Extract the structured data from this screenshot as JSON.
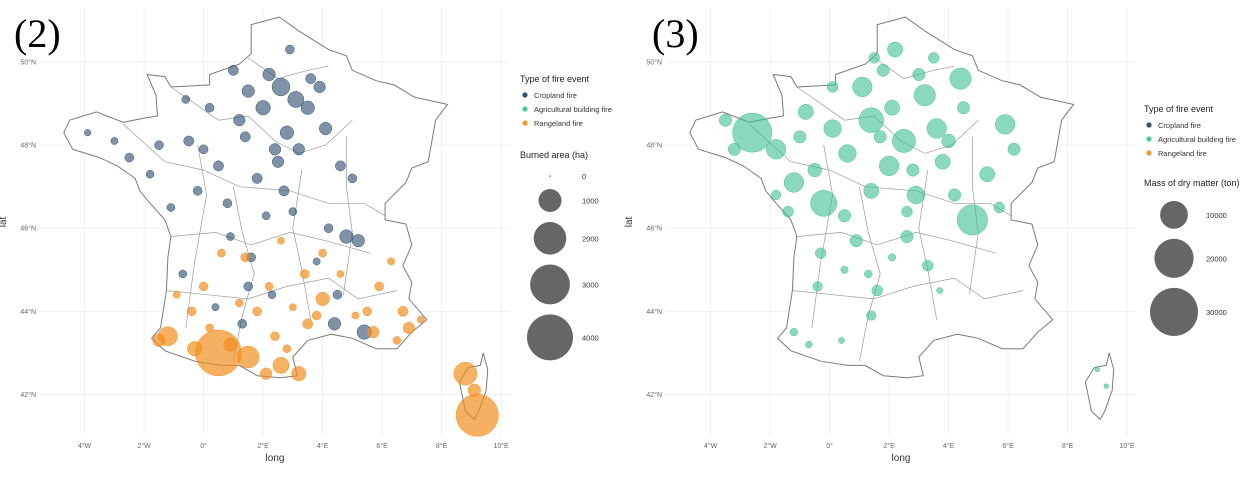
{
  "chart_data": [
    {
      "type": "scatter",
      "panel_label": "(2)",
      "xlabel": "long",
      "ylabel": "lat",
      "xlim": [
        -5.5,
        10.3
      ],
      "ylim": [
        41.0,
        51.3
      ],
      "x_ticks": [
        -4,
        -2,
        0,
        2,
        4,
        6,
        8,
        10
      ],
      "x_tick_labels": [
        "4°W",
        "2°W",
        "0°",
        "2°E",
        "4°E",
        "6°E",
        "8°E",
        "10°E"
      ],
      "y_ticks": [
        42,
        44,
        46,
        48,
        50
      ],
      "y_tick_labels": [
        "42°N",
        "44°N",
        "46°N",
        "48°N",
        "50°N"
      ],
      "grid": true,
      "legend_position": "right",
      "legend_color_title": "Type of fire event",
      "legend_color_items": [
        {
          "label": "Cropland fire",
          "color": "#374F6B"
        },
        {
          "label": "Agricultural building fire",
          "color": "#4CC9A0"
        },
        {
          "label": "Rangeland fire",
          "color": "#F39A2A"
        }
      ],
      "legend_size_title": "Burned area (ha)",
      "legend_size_items": [
        {
          "label": "0",
          "value": 0
        },
        {
          "label": "1000",
          "value": 1000
        },
        {
          "label": "2000",
          "value": 2000
        },
        {
          "label": "3000",
          "value": 3000
        },
        {
          "label": "4000",
          "value": 4000
        }
      ],
      "size_max_value": 4000,
      "series": [
        {
          "name": "Cropland fire",
          "color": "#2C4A6E",
          "opacity": 0.6,
          "points": [
            [
              2.6,
              49.4,
              600
            ],
            [
              2.0,
              48.9,
              400
            ],
            [
              3.1,
              49.1,
              500
            ],
            [
              1.5,
              49.3,
              300
            ],
            [
              2.8,
              48.3,
              350
            ],
            [
              1.2,
              48.6,
              250
            ],
            [
              -0.5,
              48.1,
              200
            ],
            [
              0.5,
              47.5,
              200
            ],
            [
              2.5,
              47.6,
              250
            ],
            [
              4.1,
              48.4,
              300
            ],
            [
              3.5,
              48.9,
              350
            ],
            [
              2.2,
              49.7,
              300
            ],
            [
              1.0,
              49.8,
              200
            ],
            [
              3.9,
              49.4,
              250
            ],
            [
              0.2,
              48.9,
              150
            ],
            [
              -1.5,
              48.0,
              150
            ],
            [
              -2.5,
              47.7,
              150
            ],
            [
              1.8,
              47.2,
              200
            ],
            [
              0.8,
              46.6,
              150
            ],
            [
              -0.2,
              46.9,
              150
            ],
            [
              2.7,
              46.9,
              200
            ],
            [
              3.2,
              47.9,
              250
            ],
            [
              4.6,
              47.5,
              200
            ],
            [
              4.8,
              45.8,
              350
            ],
            [
              5.2,
              45.7,
              300
            ],
            [
              4.4,
              43.7,
              300
            ],
            [
              5.4,
              43.5,
              400
            ],
            [
              4.5,
              44.4,
              150
            ],
            [
              1.5,
              44.6,
              150
            ],
            [
              0.4,
              44.1,
              100
            ],
            [
              1.3,
              43.7,
              150
            ],
            [
              2.3,
              44.4,
              120
            ],
            [
              -0.7,
              44.9,
              120
            ],
            [
              1.6,
              45.3,
              150
            ],
            [
              2.1,
              46.3,
              120
            ],
            [
              -1.1,
              46.5,
              120
            ],
            [
              5.0,
              47.2,
              150
            ],
            [
              3.0,
              46.4,
              120
            ],
            [
              2.4,
              47.9,
              250
            ],
            [
              1.4,
              48.2,
              200
            ],
            [
              -0.6,
              49.1,
              120
            ],
            [
              3.6,
              49.6,
              200
            ],
            [
              2.9,
              50.3,
              150
            ],
            [
              4.2,
              46.0,
              150
            ],
            [
              0.9,
              45.8,
              120
            ],
            [
              -1.8,
              47.3,
              120
            ],
            [
              0.0,
              47.9,
              150
            ],
            [
              -3.0,
              48.1,
              100
            ],
            [
              -3.9,
              48.3,
              80
            ],
            [
              3.8,
              45.2,
              100
            ]
          ]
        },
        {
          "name": "Rangeland fire",
          "color": "#F28E1E",
          "opacity": 0.7,
          "points": [
            [
              0.5,
              43.0,
              4000
            ],
            [
              9.2,
              41.5,
              3400
            ],
            [
              1.5,
              42.9,
              900
            ],
            [
              -1.2,
              43.4,
              700
            ],
            [
              8.8,
              42.5,
              1000
            ],
            [
              2.6,
              42.7,
              500
            ],
            [
              3.2,
              42.5,
              400
            ],
            [
              -0.3,
              43.1,
              400
            ],
            [
              0.9,
              43.2,
              350
            ],
            [
              2.1,
              42.5,
              250
            ],
            [
              -1.5,
              43.3,
              300
            ],
            [
              9.1,
              42.1,
              300
            ],
            [
              4.0,
              44.3,
              350
            ],
            [
              5.7,
              43.5,
              250
            ],
            [
              6.9,
              43.6,
              250
            ],
            [
              6.7,
              44.0,
              200
            ],
            [
              3.5,
              43.7,
              200
            ],
            [
              2.4,
              43.4,
              150
            ],
            [
              0.0,
              44.6,
              150
            ],
            [
              0.6,
              45.4,
              120
            ],
            [
              1.4,
              45.3,
              150
            ],
            [
              2.2,
              44.6,
              120
            ],
            [
              3.4,
              44.9,
              150
            ],
            [
              4.0,
              45.4,
              120
            ],
            [
              5.5,
              44.0,
              150
            ],
            [
              5.9,
              44.6,
              150
            ],
            [
              6.3,
              45.2,
              100
            ],
            [
              3.0,
              44.1,
              100
            ],
            [
              -0.4,
              44.0,
              150
            ],
            [
              1.2,
              44.2,
              120
            ],
            [
              2.6,
              45.7,
              100
            ],
            [
              1.8,
              44.0,
              150
            ],
            [
              4.6,
              44.9,
              100
            ],
            [
              3.8,
              43.9,
              150
            ],
            [
              5.1,
              43.9,
              100
            ],
            [
              -0.9,
              44.4,
              100
            ],
            [
              0.2,
              43.6,
              120
            ],
            [
              6.5,
              43.3,
              120
            ],
            [
              7.3,
              43.8,
              100
            ],
            [
              2.8,
              43.1,
              120
            ]
          ]
        }
      ]
    },
    {
      "type": "scatter",
      "panel_label": "(3)",
      "xlabel": "long",
      "ylabel": "lat",
      "xlim": [
        -5.5,
        10.3
      ],
      "ylim": [
        41.0,
        51.3
      ],
      "x_ticks": [
        -4,
        -2,
        0,
        2,
        4,
        6,
        8,
        10
      ],
      "x_tick_labels": [
        "4°W",
        "2°W",
        "0°",
        "2°E",
        "4°E",
        "6°E",
        "8°E",
        "10°E"
      ],
      "y_ticks": [
        42,
        44,
        46,
        48,
        50
      ],
      "y_tick_labels": [
        "42°N",
        "44°N",
        "46°N",
        "48°N",
        "50°N"
      ],
      "grid": true,
      "legend_position": "right",
      "legend_color_title": "Type of fire event",
      "legend_color_items": [
        {
          "label": "Cropland fire",
          "color": "#374F6B"
        },
        {
          "label": "Agricultural building fire",
          "color": "#4CC9A0"
        },
        {
          "label": "Rangeland fire",
          "color": "#F39A2A"
        }
      ],
      "legend_size_title": "Mass of dry matter (ton)",
      "legend_size_items": [
        {
          "label": "10000",
          "value": 10000
        },
        {
          "label": "20000",
          "value": 20000
        },
        {
          "label": "30000",
          "value": 30000
        }
      ],
      "size_max_value": 30000,
      "series": [
        {
          "name": "Agricultural building fire",
          "color": "#3CC08F",
          "opacity": 0.6,
          "points": [
            [
              -2.6,
              48.3,
              20000
            ],
            [
              4.8,
              46.2,
              12000
            ],
            [
              -0.2,
              46.6,
              9000
            ],
            [
              1.4,
              48.6,
              8000
            ],
            [
              2.5,
              48.1,
              7000
            ],
            [
              4.4,
              49.6,
              6000
            ],
            [
              3.2,
              49.2,
              6000
            ],
            [
              1.1,
              49.4,
              5000
            ],
            [
              -1.2,
              47.1,
              5000
            ],
            [
              2.0,
              47.5,
              5000
            ],
            [
              5.9,
              48.5,
              5000
            ],
            [
              3.6,
              48.4,
              5000
            ],
            [
              0.6,
              47.8,
              4000
            ],
            [
              -1.8,
              47.9,
              5000
            ],
            [
              2.9,
              46.8,
              4000
            ],
            [
              0.1,
              48.4,
              4000
            ],
            [
              1.4,
              46.9,
              3000
            ],
            [
              5.3,
              47.3,
              3000
            ],
            [
              2.2,
              50.3,
              3000
            ],
            [
              3.8,
              47.6,
              3000
            ],
            [
              -0.8,
              48.8,
              3000
            ],
            [
              2.1,
              48.9,
              3000
            ],
            [
              6.2,
              47.9,
              2000
            ],
            [
              1.8,
              49.8,
              2000
            ],
            [
              -3.5,
              48.6,
              2000
            ],
            [
              -3.2,
              47.9,
              2000
            ],
            [
              4.5,
              48.9,
              2000
            ],
            [
              0.9,
              45.7,
              2000
            ],
            [
              2.6,
              45.8,
              2000
            ],
            [
              -0.3,
              45.4,
              1500
            ],
            [
              1.6,
              44.5,
              1500
            ],
            [
              3.3,
              45.1,
              1500
            ],
            [
              1.4,
              43.9,
              1200
            ],
            [
              -0.4,
              44.6,
              1200
            ],
            [
              4.2,
              46.8,
              2000
            ],
            [
              5.7,
              46.5,
              1500
            ],
            [
              0.5,
              46.3,
              2000
            ],
            [
              -1.4,
              46.4,
              1500
            ],
            [
              2.6,
              46.4,
              1500
            ],
            [
              3.0,
              49.7,
              2000
            ],
            [
              1.5,
              50.1,
              1500
            ],
            [
              4.0,
              48.1,
              2500
            ],
            [
              2.8,
              47.4,
              2000
            ],
            [
              0.1,
              49.4,
              1500
            ],
            [
              -1.0,
              48.2,
              2000
            ],
            [
              -0.5,
              47.4,
              2500
            ],
            [
              1.7,
              48.2,
              2000
            ],
            [
              3.5,
              50.1,
              1500
            ],
            [
              9.3,
              42.2,
              300
            ],
            [
              9.0,
              42.6,
              300
            ],
            [
              -1.2,
              43.5,
              800
            ],
            [
              -0.7,
              43.2,
              600
            ],
            [
              0.4,
              43.3,
              500
            ],
            [
              1.3,
              44.9,
              800
            ],
            [
              2.1,
              45.3,
              700
            ],
            [
              3.7,
              44.5,
              500
            ],
            [
              -1.8,
              46.8,
              1200
            ],
            [
              0.5,
              45.0,
              700
            ]
          ]
        }
      ]
    }
  ]
}
